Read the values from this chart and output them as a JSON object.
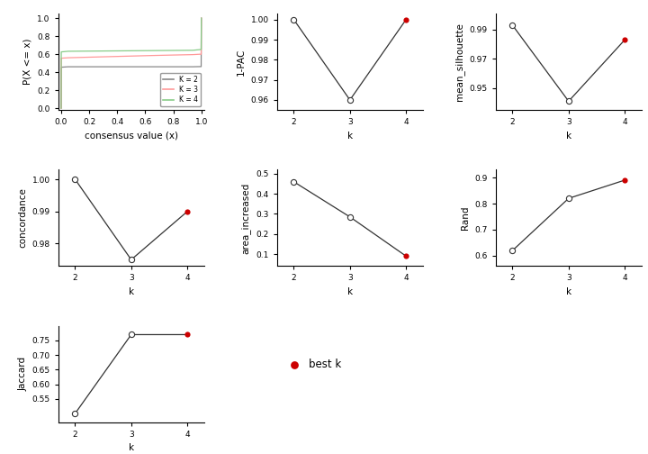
{
  "ecdf": {
    "k2": {
      "x": [
        0.0,
        0.001,
        0.05,
        0.94,
        0.999,
        1.0
      ],
      "y": [
        0.0,
        0.455,
        0.46,
        0.46,
        0.462,
        1.0
      ],
      "color": "#888888",
      "label": "K = 2"
    },
    "k3": {
      "x": [
        0.0,
        0.001,
        0.05,
        0.65,
        0.94,
        0.999,
        1.0
      ],
      "y": [
        0.0,
        0.555,
        0.56,
        0.585,
        0.595,
        0.6,
        1.0
      ],
      "color": "#FF9999",
      "label": "K = 3"
    },
    "k4": {
      "x": [
        0.0,
        0.001,
        0.05,
        0.94,
        0.999,
        1.0
      ],
      "y": [
        0.0,
        0.625,
        0.632,
        0.643,
        0.652,
        1.0
      ],
      "color": "#88CC88",
      "label": "K = 4"
    }
  },
  "pac": {
    "k": [
      2,
      3,
      4
    ],
    "y": [
      1.0,
      0.96,
      1.0
    ],
    "best_k": 4,
    "ylabel": "1-PAC",
    "yticks": [
      0.96,
      0.97,
      0.98,
      0.99,
      1.0
    ],
    "ylim": [
      0.955,
      1.003
    ]
  },
  "silhouette": {
    "k": [
      2,
      3,
      4
    ],
    "y": [
      0.993,
      0.941,
      0.983
    ],
    "best_k": 4,
    "ylabel": "mean_silhouette",
    "yticks": [
      0.95,
      0.97,
      0.99
    ],
    "ylim": [
      0.935,
      1.001
    ]
  },
  "concordance": {
    "k": [
      2,
      3,
      4
    ],
    "y": [
      1.0,
      0.975,
      0.99
    ],
    "best_k": 4,
    "ylabel": "concordance",
    "yticks": [
      0.98,
      0.99,
      1.0
    ],
    "ylim": [
      0.973,
      1.003
    ]
  },
  "area": {
    "k": [
      2,
      3,
      4
    ],
    "y": [
      0.46,
      0.285,
      0.09
    ],
    "best_k": 4,
    "ylabel": "area_increased",
    "yticks": [
      0.1,
      0.2,
      0.3,
      0.4,
      0.5
    ],
    "ylim": [
      0.04,
      0.52
    ]
  },
  "rand": {
    "k": [
      2,
      3,
      4
    ],
    "y": [
      0.62,
      0.82,
      0.89
    ],
    "best_k": 4,
    "ylabel": "Rand",
    "yticks": [
      0.6,
      0.7,
      0.8,
      0.9
    ],
    "ylim": [
      0.56,
      0.93
    ]
  },
  "jaccard": {
    "k": [
      2,
      3,
      4
    ],
    "y": [
      0.5,
      0.77,
      0.77
    ],
    "best_k": 4,
    "ylabel": "Jaccard",
    "yticks": [
      0.55,
      0.6,
      0.65,
      0.7,
      0.75
    ],
    "ylim": [
      0.47,
      0.8
    ]
  },
  "best_k_color": "#CC0000",
  "open_dot_facecolor": "white",
  "open_dot_edgecolor": "#333333",
  "line_color": "#333333",
  "bg_color": "#FFFFFF",
  "xlabel_k": "k",
  "ecdf_xlabel": "consensus value (x)",
  "ecdf_ylabel": "P(X <= x)",
  "legend_label": "best k"
}
